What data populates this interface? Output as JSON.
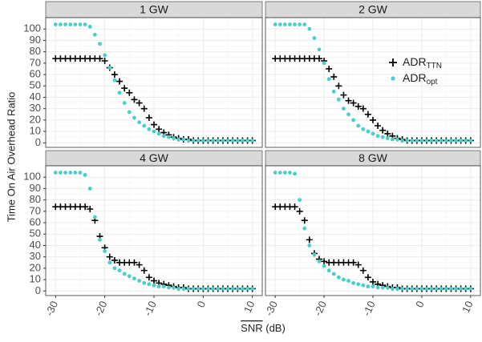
{
  "chart_data": {
    "type": "scatter",
    "xlabel": {
      "overlined": "SNR",
      "rest": "(dB)"
    },
    "ylabel": "Time On Air Overhead Ratio",
    "xlim": [
      -32,
      12
    ],
    "xticks": [
      -30,
      -20,
      -10,
      0,
      10
    ],
    "ylim": [
      -4,
      110
    ],
    "yticks": [
      0,
      10,
      20,
      30,
      40,
      50,
      60,
      70,
      80,
      90,
      100
    ],
    "grid": true,
    "x": [
      -30,
      -29,
      -28,
      -27,
      -26,
      -25,
      -24,
      -23,
      -22,
      -21,
      -20,
      -19,
      -18,
      -17,
      -16,
      -15,
      -14,
      -13,
      -12,
      -11,
      -10,
      -9,
      -8,
      -7,
      -6,
      -5,
      -4,
      -3,
      -2,
      -1,
      0,
      1,
      2,
      3,
      4,
      5,
      6,
      7,
      8,
      9,
      10
    ],
    "legend": [
      {
        "name": "ADR",
        "sub": "TTN",
        "marker": "cross",
        "color": "#000000"
      },
      {
        "name": "ADR",
        "sub": "opt",
        "marker": "dot",
        "color": "#48cfc8"
      }
    ],
    "facets": [
      {
        "title": "1 GW",
        "series": [
          {
            "values": [
              74,
              74,
              74,
              74,
              74,
              74,
              74,
              74,
              74,
              74,
              72,
              66,
              60,
              54,
              48,
              44,
              38,
              35,
              30,
              22,
              16,
              12,
              9,
              7,
              5,
              4,
              3,
              3,
              2,
              2,
              2,
              2,
              2,
              2,
              2,
              2,
              2,
              2,
              2,
              2,
              2
            ]
          },
          {
            "values": [
              104,
              104,
              104,
              104,
              104,
              104,
              104,
              102,
              95,
              87,
              77,
              66,
              55,
              44,
              35,
              27,
              22,
              18,
              15,
              12,
              10,
              8,
              6,
              5,
              4,
              3,
              3,
              2,
              2,
              2,
              2,
              2,
              2,
              2,
              2,
              2,
              2,
              2,
              2,
              2,
              2
            ]
          }
        ]
      },
      {
        "title": "2 GW",
        "series": [
          {
            "values": [
              74,
              74,
              74,
              74,
              74,
              74,
              74,
              74,
              74,
              74,
              72,
              65,
              58,
              50,
              42,
              37,
              35,
              32,
              30,
              25,
              20,
              15,
              11,
              8,
              6,
              4,
              3,
              2,
              2,
              2,
              2,
              2,
              2,
              2,
              2,
              2,
              2,
              2,
              2,
              2,
              2
            ]
          },
          {
            "values": [
              104,
              104,
              104,
              104,
              104,
              104,
              104,
              100,
              92,
              82,
              70,
              56,
              45,
              38,
              30,
              25,
              20,
              15,
              12,
              10,
              8,
              6,
              5,
              4,
              3,
              3,
              2,
              2,
              2,
              2,
              2,
              2,
              2,
              2,
              2,
              2,
              2,
              2,
              2,
              2,
              2
            ]
          }
        ]
      },
      {
        "title": "4 GW",
        "series": [
          {
            "values": [
              74,
              74,
              74,
              74,
              74,
              74,
              74,
              72,
              62,
              48,
              38,
              30,
              27,
              25,
              25,
              25,
              25,
              23,
              18,
              12,
              9,
              7,
              6,
              5,
              4,
              3,
              3,
              2,
              2,
              2,
              2,
              2,
              2,
              2,
              2,
              2,
              2,
              2,
              2,
              2,
              2
            ]
          },
          {
            "values": [
              104,
              104,
              104,
              104,
              104,
              104,
              102,
              90,
              65,
              45,
              35,
              25,
              20,
              18,
              15,
              13,
              11,
              9,
              7,
              6,
              5,
              4,
              4,
              3,
              3,
              2,
              2,
              2,
              2,
              2,
              2,
              2,
              2,
              2,
              2,
              2,
              2,
              2,
              2,
              2,
              2
            ]
          }
        ]
      },
      {
        "title": "8 GW",
        "series": [
          {
            "values": [
              74,
              74,
              74,
              74,
              74,
              70,
              62,
              45,
              33,
              28,
              26,
              25,
              25,
              25,
              25,
              25,
              25,
              23,
              18,
              12,
              8,
              6,
              5,
              4,
              3,
              3,
              2,
              2,
              2,
              2,
              2,
              2,
              2,
              2,
              2,
              2,
              2,
              2,
              2,
              2,
              2
            ]
          },
          {
            "values": [
              104,
              104,
              104,
              104,
              103,
              80,
              55,
              40,
              32,
              26,
              22,
              18,
              15,
              12,
              10,
              9,
              7,
              6,
              5,
              4,
              4,
              3,
              3,
              3,
              2,
              2,
              2,
              2,
              2,
              2,
              2,
              2,
              2,
              2,
              2,
              2,
              2,
              2,
              2,
              2,
              2
            ]
          }
        ]
      }
    ]
  }
}
